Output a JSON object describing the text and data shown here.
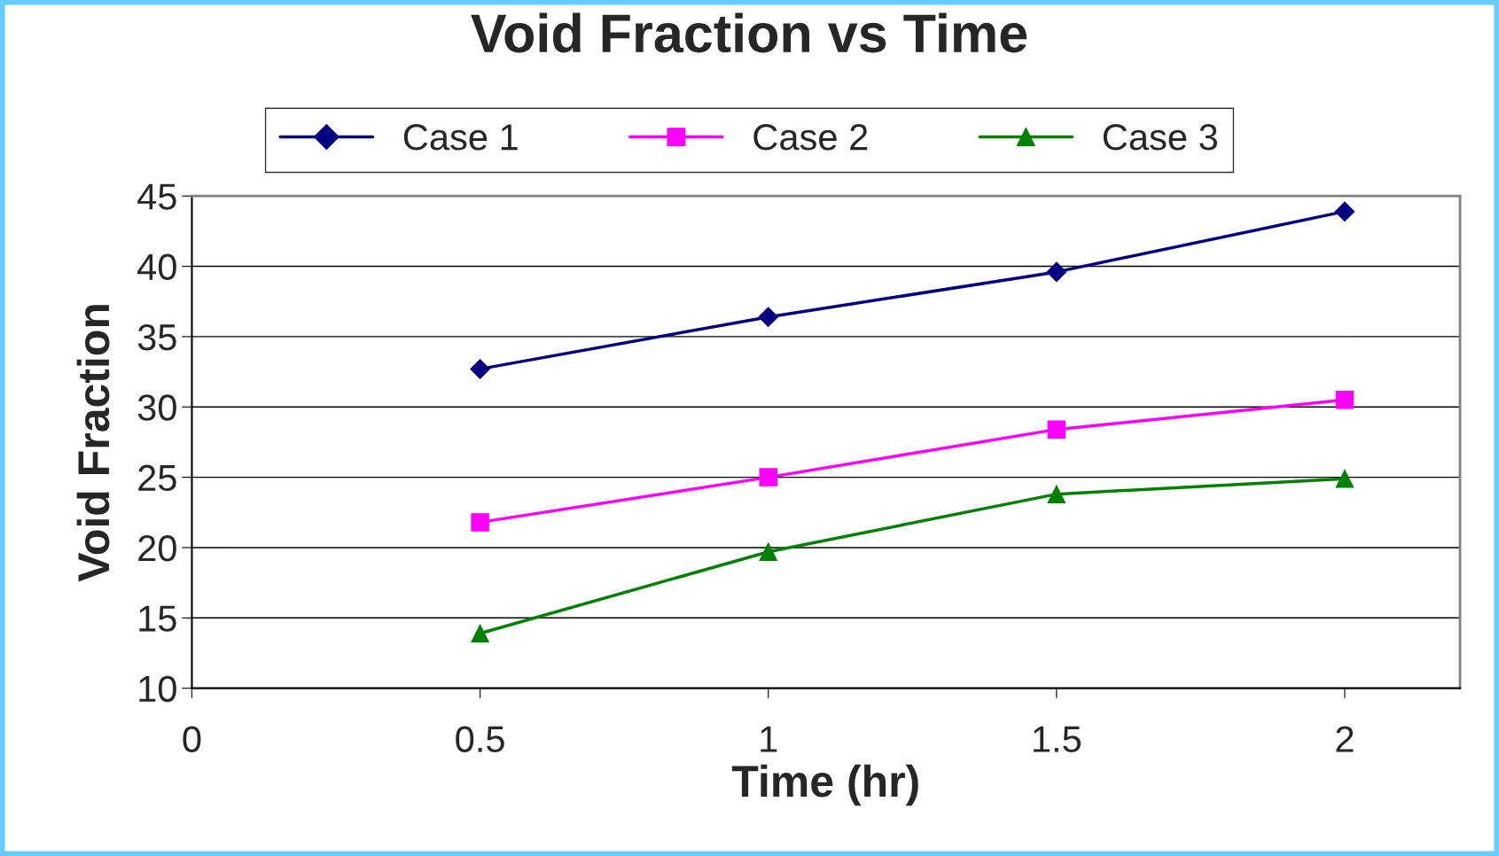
{
  "chart_data": {
    "type": "line",
    "title": "Void Fraction vs Time",
    "xlabel": "Time (hr)",
    "ylabel": "Void Fraction",
    "x": [
      0.5,
      1,
      1.5,
      2
    ],
    "series": [
      {
        "name": "Case 1",
        "color": "#000080",
        "marker": "diamond",
        "values": [
          32.7,
          36.4,
          39.6,
          43.9
        ]
      },
      {
        "name": "Case 2",
        "color": "#ff00ff",
        "marker": "square",
        "values": [
          21.8,
          25.0,
          28.4,
          30.5
        ]
      },
      {
        "name": "Case 3",
        "color": "#008000",
        "marker": "triangle",
        "values": [
          13.9,
          19.7,
          23.8,
          24.9
        ]
      }
    ],
    "xlim": [
      0,
      2.2
    ],
    "xticks": [
      0,
      0.5,
      1,
      1.5,
      2
    ],
    "ylim": [
      10,
      45
    ],
    "yticks": [
      10,
      15,
      20,
      25,
      30,
      35,
      40,
      45
    ],
    "grid": "y",
    "legend": "top",
    "line_style": "solid"
  }
}
